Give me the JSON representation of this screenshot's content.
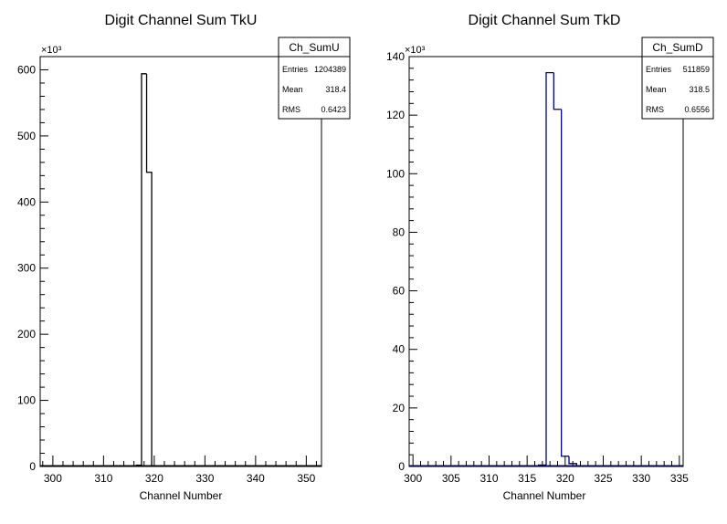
{
  "chart_data": [
    {
      "type": "bar",
      "title": "Digit Channel Sum TkU",
      "xlabel": "Channel Number",
      "ylabel": "",
      "y_multiplier_label": "×10³",
      "xlim": [
        297.5,
        353
      ],
      "ylim": [
        0,
        620
      ],
      "x_ticks": [
        300,
        310,
        320,
        330,
        340,
        350
      ],
      "y_ticks": [
        0,
        100,
        200,
        300,
        400,
        500,
        600
      ],
      "x_tick_labels": [
        "300",
        "310",
        "320",
        "330",
        "340",
        "350"
      ],
      "y_tick_labels": [
        "0",
        "100",
        "200",
        "300",
        "400",
        "500",
        "600"
      ],
      "bin_width": 1,
      "bins": [
        {
          "x": 317,
          "value": 2
        },
        {
          "x": 318,
          "value": 594
        },
        {
          "x": 319,
          "value": 445
        }
      ],
      "color": "#000000",
      "stats": {
        "name": "Ch_SumU",
        "rows": [
          {
            "label": "Entries",
            "value": "1204389"
          },
          {
            "label": "Mean",
            "value": "318.4"
          },
          {
            "label": "RMS",
            "value": "0.6423"
          }
        ]
      }
    },
    {
      "type": "bar",
      "title": "Digit Channel Sum TkD",
      "xlabel": "Channel Number",
      "ylabel": "",
      "y_multiplier_label": "×10³",
      "xlim": [
        299.5,
        335.5
      ],
      "ylim": [
        0,
        140
      ],
      "x_ticks": [
        300,
        305,
        310,
        315,
        320,
        325,
        330,
        335
      ],
      "y_ticks": [
        0,
        20,
        40,
        60,
        80,
        100,
        120,
        140
      ],
      "x_tick_labels": [
        "300",
        "305",
        "310",
        "315",
        "320",
        "325",
        "330",
        "335"
      ],
      "y_tick_labels": [
        "0",
        "20",
        "40",
        "60",
        "80",
        "100",
        "120",
        "140"
      ],
      "bin_width": 1,
      "bins": [
        {
          "x": 317,
          "value": 0.5
        },
        {
          "x": 318,
          "value": 134.5
        },
        {
          "x": 319,
          "value": 122
        },
        {
          "x": 320,
          "value": 3.5
        },
        {
          "x": 321,
          "value": 1
        }
      ],
      "color": "#000080",
      "stats": {
        "name": "Ch_SumD",
        "rows": [
          {
            "label": "Entries",
            "value": "511859"
          },
          {
            "label": "Mean",
            "value": "318.5"
          },
          {
            "label": "RMS",
            "value": "0.6556"
          }
        ]
      }
    }
  ]
}
